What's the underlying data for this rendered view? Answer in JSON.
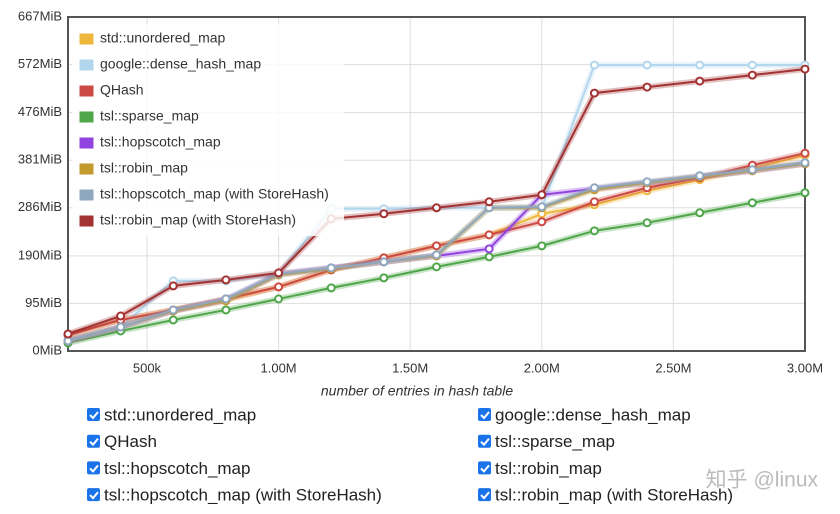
{
  "chart_data": {
    "type": "line",
    "x_label": "number of entries in hash table",
    "x": [
      200000,
      400000,
      600000,
      800000,
      1000000,
      1200000,
      1400000,
      1600000,
      1800000,
      2000000,
      2200000,
      2400000,
      2600000,
      2800000,
      3000000
    ],
    "xlim": [
      200000,
      3000000
    ],
    "xticks": [
      {
        "value": 500000,
        "label": "500k"
      },
      {
        "value": 1000000,
        "label": "1.00M"
      },
      {
        "value": 1500000,
        "label": "1.50M"
      },
      {
        "value": 2000000,
        "label": "2.00M"
      },
      {
        "value": 2500000,
        "label": "2.50M"
      },
      {
        "value": 3000000,
        "label": "3.00M"
      }
    ],
    "ylim": [
      0,
      667
    ],
    "yticks": [
      {
        "value": 0,
        "label": "0MiB"
      },
      {
        "value": 95,
        "label": "95MiB"
      },
      {
        "value": 190,
        "label": "190MiB"
      },
      {
        "value": 286,
        "label": "286MiB"
      },
      {
        "value": 381,
        "label": "381MiB"
      },
      {
        "value": 476,
        "label": "476MiB"
      },
      {
        "value": 572,
        "label": "572MiB"
      },
      {
        "value": 667,
        "label": "667MiB"
      }
    ],
    "grid": true,
    "legend": "top-left",
    "series": [
      {
        "name": "std::unordered_map",
        "color": "#eeb73c",
        "values": [
          32,
          62,
          82,
          102,
          128,
          162,
          186,
          210,
          232,
          274,
          292,
          320,
          342,
          365,
          391
        ]
      },
      {
        "name": "google::dense_hash_map",
        "color": "#b2d6ee",
        "values": [
          22,
          48,
          140,
          140,
          154,
          284,
          284,
          286,
          286,
          286,
          571,
          571,
          571,
          571,
          571
        ]
      },
      {
        "name": "QHash",
        "color": "#cc4a44",
        "values": [
          32,
          62,
          82,
          104,
          128,
          162,
          186,
          210,
          232,
          258,
          298,
          326,
          346,
          371,
          395
        ]
      },
      {
        "name": "tsl::sparse_map",
        "color": "#4fa64a",
        "values": [
          16,
          40,
          62,
          82,
          104,
          126,
          146,
          168,
          188,
          210,
          240,
          256,
          276,
          296,
          316
        ]
      },
      {
        "name": "tsl::hopscotch_map",
        "color": "#9143e0",
        "values": [
          20,
          48,
          80,
          102,
          154,
          166,
          178,
          190,
          204,
          312,
          324,
          336,
          348,
          360,
          374
        ]
      },
      {
        "name": "tsl::robin_map",
        "color": "#c39a2e",
        "values": [
          20,
          48,
          80,
          100,
          152,
          164,
          178,
          190,
          286,
          286,
          322,
          336,
          348,
          360,
          374
        ]
      },
      {
        "name": "tsl::hopscotch_map (with StoreHash)",
        "color": "#8fa7bf",
        "values": [
          20,
          48,
          82,
          104,
          154,
          166,
          178,
          192,
          286,
          288,
          326,
          338,
          350,
          362,
          376
        ]
      },
      {
        "name": "tsl::robin_map (with StoreHash)",
        "color": "#a33232",
        "values": [
          34,
          70,
          130,
          142,
          156,
          264,
          274,
          286,
          298,
          312,
          515,
          527,
          539,
          551,
          563
        ]
      }
    ],
    "watermark": "知乎 @linux"
  }
}
